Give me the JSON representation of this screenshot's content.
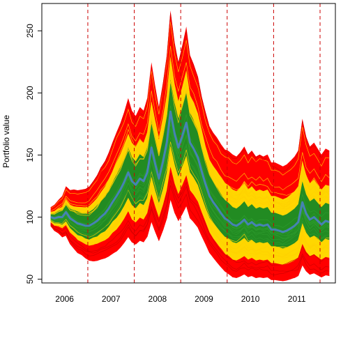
{
  "chart_data": {
    "type": "area",
    "title": "",
    "xlabel": "",
    "ylabel": "Portfolio value",
    "ylim": [
      47,
      272
    ],
    "xlim": [
      2005.56,
      2011.88
    ],
    "y_ticks": [
      50,
      100,
      150,
      200,
      250
    ],
    "x_category_labels": [
      {
        "label": "2006",
        "at": 2006.05
      },
      {
        "label": "2007",
        "at": 2007.05
      },
      {
        "label": "2008",
        "at": 2008.05
      },
      {
        "label": "2009",
        "at": 2009.05
      },
      {
        "label": "2010",
        "at": 2010.05
      },
      {
        "label": "2011",
        "at": 2011.05
      }
    ],
    "vertical_dashed_lines": [
      2006.55,
      2007.55,
      2008.55,
      2009.55,
      2010.55,
      2011.55
    ],
    "x": [
      2005.75,
      2005.83,
      2005.92,
      2006.0,
      2006.08,
      2006.17,
      2006.25,
      2006.33,
      2006.42,
      2006.5,
      2006.58,
      2006.67,
      2006.75,
      2006.83,
      2006.92,
      2007.0,
      2007.08,
      2007.17,
      2007.25,
      2007.33,
      2007.42,
      2007.5,
      2007.58,
      2007.67,
      2007.75,
      2007.83,
      2007.92,
      2008.0,
      2008.08,
      2008.17,
      2008.25,
      2008.33,
      2008.42,
      2008.5,
      2008.58,
      2008.67,
      2008.75,
      2008.83,
      2008.92,
      2009.0,
      2009.08,
      2009.17,
      2009.25,
      2009.33,
      2009.42,
      2009.5,
      2009.58,
      2009.67,
      2009.75,
      2009.83,
      2009.92,
      2010.0,
      2010.08,
      2010.17,
      2010.25,
      2010.33,
      2010.42,
      2010.5,
      2010.58,
      2010.67,
      2010.75,
      2010.83,
      2010.92,
      2011.0,
      2011.08,
      2011.17,
      2011.25,
      2011.33,
      2011.42,
      2011.5,
      2011.58,
      2011.67,
      2011.75
    ],
    "median": [
      100,
      99,
      100,
      100,
      104,
      99,
      97,
      95,
      94,
      93,
      93,
      95,
      97,
      100,
      103,
      107,
      112,
      117,
      122,
      128,
      136,
      129,
      126,
      131,
      129,
      136,
      156,
      143,
      131,
      145,
      160,
      185,
      167,
      156,
      165,
      176,
      160,
      155,
      148,
      137,
      127,
      117,
      112,
      108,
      103,
      99,
      97,
      94,
      93,
      95,
      98,
      94,
      96,
      93,
      94,
      93,
      94,
      90,
      90,
      89,
      88,
      89,
      91,
      93,
      96,
      112,
      103,
      98,
      100,
      97,
      94,
      97,
      96
    ],
    "band_50": {
      "lower": [
        0.97,
        0.96,
        0.95,
        0.94,
        0.93,
        0.92,
        0.91,
        0.9,
        0.9,
        0.89,
        0.88,
        0.88,
        0.87,
        0.87,
        0.86,
        0.86,
        0.86,
        0.85,
        0.85,
        0.85,
        0.85,
        0.85,
        0.85,
        0.85,
        0.85,
        0.85,
        0.85,
        0.85,
        0.85,
        0.85,
        0.85,
        0.85,
        0.85,
        0.85,
        0.85,
        0.85,
        0.85,
        0.85,
        0.85,
        0.85,
        0.85,
        0.85,
        0.85,
        0.85,
        0.85,
        0.85,
        0.85,
        0.85,
        0.85,
        0.85,
        0.85,
        0.85,
        0.85,
        0.85,
        0.85,
        0.85,
        0.85,
        0.85,
        0.85,
        0.85,
        0.85,
        0.85,
        0.85,
        0.85,
        0.85,
        0.85,
        0.85,
        0.85,
        0.85,
        0.85,
        0.85,
        0.85,
        0.85
      ],
      "upper": [
        1.03,
        1.04,
        1.05,
        1.06,
        1.07,
        1.08,
        1.09,
        1.1,
        1.1,
        1.11,
        1.12,
        1.12,
        1.13,
        1.13,
        1.14,
        1.14,
        1.14,
        1.15,
        1.15,
        1.15,
        1.15,
        1.15,
        1.15,
        1.15,
        1.15,
        1.15,
        1.15,
        1.15,
        1.15,
        1.15,
        1.15,
        1.15,
        1.15,
        1.15,
        1.15,
        1.15,
        1.15,
        1.15,
        1.15,
        1.15,
        1.15,
        1.15,
        1.15,
        1.15,
        1.15,
        1.15,
        1.15,
        1.15,
        1.15,
        1.15,
        1.15,
        1.15,
        1.15,
        1.15,
        1.15,
        1.15,
        1.15,
        1.15,
        1.15,
        1.15,
        1.15,
        1.15,
        1.15,
        1.15,
        1.15,
        1.15,
        1.15,
        1.15,
        1.15,
        1.15,
        1.15,
        1.15,
        1.15
      ]
    },
    "band_outer": {
      "lower": [
        0.96,
        0.94,
        0.93,
        0.92,
        0.9,
        0.89,
        0.88,
        0.86,
        0.85,
        0.84,
        0.83,
        0.82,
        0.81,
        0.8,
        0.79,
        0.78,
        0.78,
        0.77,
        0.77,
        0.77,
        0.77,
        0.76,
        0.76,
        0.76,
        0.76,
        0.76,
        0.76,
        0.76,
        0.76,
        0.76,
        0.76,
        0.76,
        0.76,
        0.76,
        0.76,
        0.76,
        0.76,
        0.76,
        0.76,
        0.76,
        0.76,
        0.75,
        0.74,
        0.73,
        0.72,
        0.71,
        0.71,
        0.7,
        0.7,
        0.7,
        0.7,
        0.7,
        0.7,
        0.7,
        0.7,
        0.7,
        0.7,
        0.7,
        0.7,
        0.7,
        0.7,
        0.7,
        0.7,
        0.7,
        0.7,
        0.7,
        0.7,
        0.7,
        0.7,
        0.7,
        0.7,
        0.7,
        0.7
      ],
      "upper": [
        1.04,
        1.06,
        1.07,
        1.08,
        1.1,
        1.11,
        1.12,
        1.14,
        1.15,
        1.16,
        1.17,
        1.18,
        1.19,
        1.2,
        1.21,
        1.22,
        1.22,
        1.23,
        1.23,
        1.23,
        1.23,
        1.24,
        1.24,
        1.24,
        1.24,
        1.24,
        1.24,
        1.24,
        1.24,
        1.24,
        1.24,
        1.24,
        1.24,
        1.24,
        1.24,
        1.24,
        1.24,
        1.24,
        1.24,
        1.24,
        1.24,
        1.25,
        1.26,
        1.27,
        1.28,
        1.29,
        1.29,
        1.3,
        1.3,
        1.3,
        1.3,
        1.3,
        1.3,
        1.3,
        1.3,
        1.3,
        1.3,
        1.3,
        1.3,
        1.3,
        1.3,
        1.3,
        1.3,
        1.3,
        1.3,
        1.3,
        1.3,
        1.3,
        1.3,
        1.3,
        1.3,
        1.3,
        1.3
      ]
    },
    "band_tail": {
      "lower": [
        0.94,
        0.92,
        0.9,
        0.88,
        0.86,
        0.84,
        0.82,
        0.8,
        0.79,
        0.78,
        0.76,
        0.75,
        0.74,
        0.72,
        0.71,
        0.7,
        0.7,
        0.69,
        0.69,
        0.68,
        0.68,
        0.68,
        0.68,
        0.68,
        0.68,
        0.68,
        0.68,
        0.68,
        0.68,
        0.68,
        0.68,
        0.68,
        0.68,
        0.68,
        0.68,
        0.68,
        0.68,
        0.68,
        0.68,
        0.68,
        0.67,
        0.66,
        0.65,
        0.64,
        0.63,
        0.62,
        0.61,
        0.6,
        0.6,
        0.6,
        0.6,
        0.6,
        0.6,
        0.6,
        0.6,
        0.6,
        0.6,
        0.6,
        0.6,
        0.6,
        0.6,
        0.6,
        0.6,
        0.6,
        0.6,
        0.6,
        0.6,
        0.6,
        0.6,
        0.6,
        0.6,
        0.6,
        0.6
      ],
      "upper": [
        1.06,
        1.08,
        1.1,
        1.12,
        1.14,
        1.16,
        1.18,
        1.2,
        1.21,
        1.22,
        1.24,
        1.25,
        1.26,
        1.28,
        1.29,
        1.3,
        1.3,
        1.31,
        1.31,
        1.32,
        1.32,
        1.32,
        1.32,
        1.32,
        1.32,
        1.32,
        1.32,
        1.32,
        1.32,
        1.32,
        1.32,
        1.32,
        1.32,
        1.32,
        1.32,
        1.32,
        1.32,
        1.32,
        1.32,
        1.32,
        1.33,
        1.34,
        1.35,
        1.36,
        1.37,
        1.38,
        1.39,
        1.4,
        1.4,
        1.4,
        1.4,
        1.4,
        1.4,
        1.4,
        1.4,
        1.4,
        1.4,
        1.4,
        1.4,
        1.4,
        1.4,
        1.4,
        1.4,
        1.4,
        1.4,
        1.4,
        1.4,
        1.4,
        1.4,
        1.4,
        1.4,
        1.4,
        1.4
      ]
    },
    "band_extreme": {
      "lower": [
        0.93,
        0.9,
        0.87,
        0.84,
        0.82,
        0.79,
        0.77,
        0.75,
        0.74,
        0.72,
        0.7,
        0.68,
        0.67,
        0.66,
        0.65,
        0.64,
        0.63,
        0.62,
        0.62,
        0.62,
        0.62,
        0.62,
        0.62,
        0.62,
        0.62,
        0.62,
        0.62,
        0.62,
        0.62,
        0.62,
        0.62,
        0.62,
        0.62,
        0.62,
        0.62,
        0.62,
        0.62,
        0.62,
        0.62,
        0.62,
        0.62,
        0.61,
        0.6,
        0.59,
        0.58,
        0.57,
        0.56,
        0.55,
        0.55,
        0.55,
        0.55,
        0.55,
        0.55,
        0.55,
        0.55,
        0.55,
        0.55,
        0.55,
        0.55,
        0.55,
        0.55,
        0.55,
        0.55,
        0.55,
        0.55,
        0.55,
        0.55,
        0.55,
        0.55,
        0.55,
        0.55,
        0.55,
        0.55
      ],
      "upper": [
        1.08,
        1.11,
        1.14,
        1.17,
        1.2,
        1.23,
        1.26,
        1.28,
        1.3,
        1.32,
        1.34,
        1.36,
        1.38,
        1.4,
        1.41,
        1.42,
        1.43,
        1.44,
        1.44,
        1.44,
        1.44,
        1.44,
        1.44,
        1.44,
        1.44,
        1.44,
        1.44,
        1.44,
        1.44,
        1.44,
        1.44,
        1.44,
        1.44,
        1.44,
        1.44,
        1.44,
        1.44,
        1.44,
        1.44,
        1.44,
        1.46,
        1.48,
        1.5,
        1.52,
        1.54,
        1.56,
        1.58,
        1.6,
        1.6,
        1.6,
        1.6,
        1.6,
        1.6,
        1.6,
        1.6,
        1.6,
        1.6,
        1.6,
        1.6,
        1.6,
        1.6,
        1.6,
        1.6,
        1.6,
        1.6,
        1.6,
        1.6,
        1.6,
        1.6,
        1.6,
        1.6,
        1.6,
        1.6
      ]
    },
    "colors": {
      "extreme_band": "#ff0000",
      "tail_band": "#ff0000",
      "outer_band": "#ffd700",
      "middle_band": "#228b22",
      "median_line": "#4682b4",
      "dashed_lines": "#cc0000",
      "axis": "#000000"
    },
    "grid": false,
    "legend": "none"
  }
}
